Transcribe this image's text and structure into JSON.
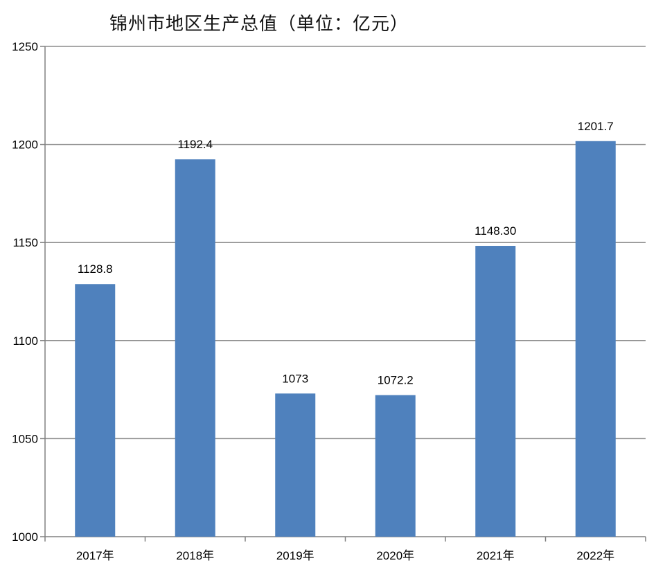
{
  "chart_data": {
    "type": "bar",
    "title": "锦州市地区生产总值（单位：亿元）",
    "xlabel": "",
    "ylabel": "",
    "categories": [
      "2017年",
      "2018年",
      "2019年",
      "2020年",
      "2021年",
      "2022年"
    ],
    "values": [
      1128.8,
      1192.4,
      1073,
      1072.2,
      1148.3,
      1201.7
    ],
    "data_labels": [
      "1128.8",
      "1192.4",
      "1073",
      "1072.2",
      "1148.30",
      "1201.7"
    ],
    "ylim": [
      1000,
      1250
    ],
    "yticks": [
      "1000",
      "1050",
      "1100",
      "1150",
      "1200",
      "1250"
    ],
    "grid": true,
    "legend": "none",
    "colors": {
      "bar": "#4F81BD",
      "grid": "#8c8c8c",
      "axis": "#808080"
    }
  }
}
